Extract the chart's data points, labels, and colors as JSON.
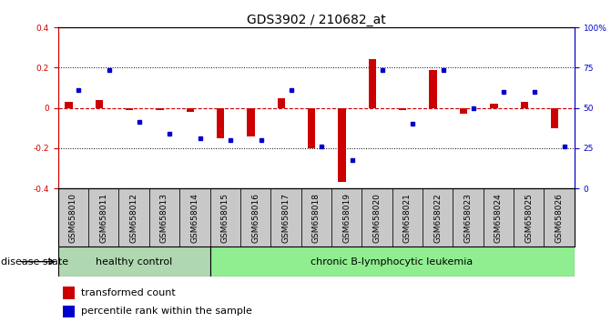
{
  "title": "GDS3902 / 210682_at",
  "samples": [
    "GSM658010",
    "GSM658011",
    "GSM658012",
    "GSM658013",
    "GSM658014",
    "GSM658015",
    "GSM658016",
    "GSM658017",
    "GSM658018",
    "GSM658019",
    "GSM658020",
    "GSM658021",
    "GSM658022",
    "GSM658023",
    "GSM658024",
    "GSM658025",
    "GSM658026"
  ],
  "red_values": [
    0.03,
    0.04,
    -0.01,
    -0.01,
    -0.02,
    -0.15,
    -0.14,
    0.05,
    -0.2,
    -0.37,
    0.24,
    -0.01,
    0.19,
    -0.03,
    0.02,
    0.03,
    -0.1
  ],
  "blue_values": [
    0.09,
    0.19,
    -0.07,
    -0.13,
    -0.15,
    -0.16,
    -0.16,
    0.09,
    -0.19,
    -0.26,
    0.19,
    -0.08,
    0.19,
    0.0,
    0.08,
    0.08,
    -0.19
  ],
  "healthy_count": 5,
  "group1_label": "healthy control",
  "group2_label": "chronic B-lymphocytic leukemia",
  "disease_state_label": "disease state",
  "legend_red": "transformed count",
  "legend_blue": "percentile rank within the sample",
  "ylim_left": [
    -0.4,
    0.4
  ],
  "ylim_right": [
    0,
    100
  ],
  "yticks_left": [
    -0.4,
    -0.2,
    0.0,
    0.2,
    0.4
  ],
  "yticks_right": [
    0,
    25,
    50,
    75,
    100
  ],
  "red_color": "#CC0000",
  "blue_color": "#0000CC",
  "healthy_bg": "#c8c8c8",
  "leukemia_bg": "#90EE90",
  "healthy_group_color": "#b0d8b0",
  "title_fontsize": 10,
  "tick_fontsize": 6.5,
  "label_fontsize": 8,
  "legend_fontsize": 8
}
